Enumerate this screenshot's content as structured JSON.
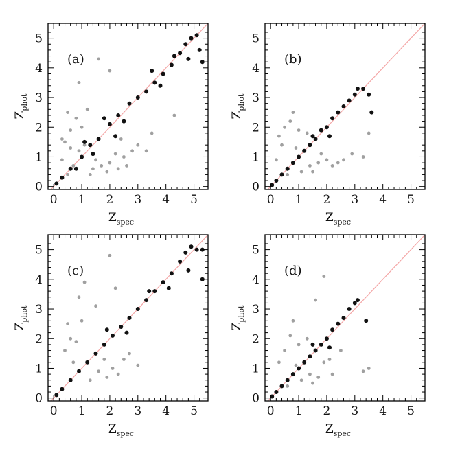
{
  "chart_data": [
    {
      "panel": "(a)",
      "type": "scatter",
      "xlabel": {
        "main": "Z",
        "sub": "spec"
      },
      "ylabel": {
        "main": "Z",
        "sub": "phot"
      },
      "xlim": [
        -0.2,
        5.5
      ],
      "ylim": [
        -0.1,
        5.5
      ],
      "xticks": [
        "0",
        "1",
        "2",
        "3",
        "4",
        "5"
      ],
      "yticks": [
        "0",
        "1",
        "2",
        "3",
        "4",
        "5"
      ],
      "reference_line": "y = x",
      "series": [
        {
          "color": "#a0a0a0",
          "points": [
            [
              0.3,
              0.9
            ],
            [
              0.4,
              1.5
            ],
            [
              0.6,
              1.9
            ],
            [
              0.8,
              2.3
            ],
            [
              0.9,
              1.2
            ],
            [
              1.0,
              2.0
            ],
            [
              0.5,
              2.5
            ],
            [
              1.2,
              2.6
            ],
            [
              0.7,
              0.7
            ],
            [
              1.4,
              0.6
            ],
            [
              1.7,
              0.7
            ],
            [
              2.0,
              0.8
            ],
            [
              2.3,
              0.6
            ],
            [
              2.6,
              0.7
            ],
            [
              2.2,
              1.1
            ],
            [
              1.9,
              0.5
            ],
            [
              1.5,
              0.9
            ],
            [
              2.8,
              1.2
            ],
            [
              0.9,
              3.5
            ],
            [
              2.0,
              3.9
            ],
            [
              1.6,
              4.3
            ],
            [
              3.3,
              1.2
            ],
            [
              0.3,
              1.6
            ],
            [
              0.6,
              1.3
            ],
            [
              1.1,
              1.4
            ],
            [
              2.5,
              1.0
            ],
            [
              3.0,
              1.4
            ],
            [
              2.4,
              1.6
            ],
            [
              3.5,
              1.8
            ],
            [
              4.3,
              2.4
            ],
            [
              0.5,
              0.4
            ],
            [
              1.3,
              0.4
            ]
          ]
        },
        {
          "color": "#111111",
          "points": [
            [
              0.1,
              0.1
            ],
            [
              0.3,
              0.3
            ],
            [
              0.6,
              0.6
            ],
            [
              1.0,
              1.0
            ],
            [
              1.3,
              1.4
            ],
            [
              1.6,
              1.6
            ],
            [
              2.0,
              2.1
            ],
            [
              2.3,
              2.4
            ],
            [
              2.7,
              2.8
            ],
            [
              3.0,
              3.0
            ],
            [
              3.3,
              3.2
            ],
            [
              3.6,
              3.5
            ],
            [
              3.9,
              3.8
            ],
            [
              4.2,
              4.1
            ],
            [
              4.5,
              4.5
            ],
            [
              4.7,
              4.8
            ],
            [
              4.9,
              5.0
            ],
            [
              5.1,
              5.1
            ],
            [
              5.2,
              4.6
            ],
            [
              5.3,
              4.2
            ],
            [
              4.8,
              4.3
            ],
            [
              4.3,
              4.4
            ],
            [
              3.8,
              3.4
            ],
            [
              3.5,
              3.9
            ],
            [
              2.5,
              2.2
            ],
            [
              1.8,
              2.3
            ],
            [
              2.2,
              1.7
            ],
            [
              1.1,
              1.5
            ],
            [
              1.4,
              1.1
            ],
            [
              0.8,
              0.6
            ]
          ]
        }
      ]
    },
    {
      "panel": "(b)",
      "type": "scatter",
      "xlabel": {
        "main": "Z",
        "sub": "spec"
      },
      "ylabel": {
        "main": "Z",
        "sub": "phot"
      },
      "xlim": [
        -0.2,
        5.5
      ],
      "ylim": [
        -0.1,
        5.5
      ],
      "xticks": [
        "0",
        "1",
        "2",
        "3",
        "4",
        "5"
      ],
      "yticks": [
        "0",
        "1",
        "2",
        "3",
        "4",
        "5"
      ],
      "reference_line": "y = x",
      "series": [
        {
          "color": "#a0a0a0",
          "points": [
            [
              0.2,
              0.9
            ],
            [
              0.4,
              1.4
            ],
            [
              0.5,
              2.0
            ],
            [
              0.7,
              2.2
            ],
            [
              0.9,
              1.3
            ],
            [
              0.3,
              1.7
            ],
            [
              1.1,
              0.5
            ],
            [
              1.4,
              0.7
            ],
            [
              1.7,
              0.8
            ],
            [
              2.0,
              0.9
            ],
            [
              2.2,
              0.7
            ],
            [
              1.8,
              1.1
            ],
            [
              2.4,
              0.8
            ],
            [
              1.3,
              1.8
            ],
            [
              0.6,
              0.4
            ],
            [
              0.8,
              2.5
            ],
            [
              2.6,
              0.9
            ],
            [
              2.9,
              1.1
            ],
            [
              3.5,
              1.8
            ],
            [
              3.3,
              1.0
            ],
            [
              1.5,
              0.5
            ],
            [
              1.0,
              1.9
            ]
          ]
        },
        {
          "color": "#111111",
          "points": [
            [
              0.05,
              0.05
            ],
            [
              0.2,
              0.2
            ],
            [
              0.4,
              0.4
            ],
            [
              0.6,
              0.6
            ],
            [
              0.8,
              0.8
            ],
            [
              1.0,
              1.0
            ],
            [
              1.2,
              1.2
            ],
            [
              1.4,
              1.4
            ],
            [
              1.6,
              1.6
            ],
            [
              1.8,
              1.9
            ],
            [
              2.0,
              2.0
            ],
            [
              2.2,
              2.3
            ],
            [
              2.4,
              2.5
            ],
            [
              2.6,
              2.7
            ],
            [
              2.8,
              2.9
            ],
            [
              3.0,
              3.1
            ],
            [
              3.1,
              3.3
            ],
            [
              3.3,
              3.3
            ],
            [
              3.5,
              3.1
            ],
            [
              3.6,
              2.5
            ],
            [
              2.1,
              1.7
            ],
            [
              1.5,
              1.7
            ]
          ]
        }
      ]
    },
    {
      "panel": "(c)",
      "type": "scatter",
      "xlabel": {
        "main": "Z",
        "sub": "spec"
      },
      "ylabel": {
        "main": "Z",
        "sub": "phot"
      },
      "xlim": [
        -0.2,
        5.5
      ],
      "ylim": [
        -0.1,
        5.5
      ],
      "xticks": [
        "0",
        "1",
        "2",
        "3",
        "4",
        "5"
      ],
      "yticks": [
        "0",
        "1",
        "2",
        "3",
        "4",
        "5"
      ],
      "reference_line": "y = x",
      "series": [
        {
          "color": "#a0a0a0",
          "points": [
            [
              0.4,
              1.6
            ],
            [
              0.6,
              2.0
            ],
            [
              0.8,
              1.9
            ],
            [
              1.0,
              2.6
            ],
            [
              0.9,
              3.4
            ],
            [
              1.2,
              1.2
            ],
            [
              1.6,
              0.9
            ],
            [
              1.9,
              0.7
            ],
            [
              2.1,
              1.0
            ],
            [
              1.5,
              1.5
            ],
            [
              2.3,
              0.8
            ],
            [
              1.1,
              3.9
            ],
            [
              2.2,
              3.7
            ],
            [
              1.5,
              3.1
            ],
            [
              2.0,
              4.8
            ],
            [
              3.0,
              1.1
            ],
            [
              2.7,
              1.5
            ],
            [
              0.7,
              1.2
            ],
            [
              1.3,
              0.6
            ],
            [
              2.5,
              1.3
            ],
            [
              1.8,
              1.3
            ],
            [
              0.5,
              2.5
            ]
          ]
        },
        {
          "color": "#111111",
          "points": [
            [
              0.1,
              0.1
            ],
            [
              0.3,
              0.3
            ],
            [
              0.6,
              0.6
            ],
            [
              0.9,
              0.9
            ],
            [
              1.2,
              1.2
            ],
            [
              1.5,
              1.5
            ],
            [
              1.8,
              1.8
            ],
            [
              2.1,
              2.1
            ],
            [
              2.4,
              2.4
            ],
            [
              2.7,
              2.7
            ],
            [
              3.0,
              3.0
            ],
            [
              3.3,
              3.3
            ],
            [
              3.6,
              3.6
            ],
            [
              3.9,
              3.9
            ],
            [
              4.2,
              4.2
            ],
            [
              4.5,
              4.6
            ],
            [
              4.7,
              4.9
            ],
            [
              4.9,
              5.1
            ],
            [
              5.1,
              5.0
            ],
            [
              5.3,
              5.0
            ],
            [
              5.3,
              4.0
            ],
            [
              4.8,
              4.3
            ],
            [
              4.1,
              3.7
            ],
            [
              3.4,
              3.6
            ],
            [
              2.6,
              2.2
            ],
            [
              1.9,
              2.3
            ]
          ]
        }
      ]
    },
    {
      "panel": "(d)",
      "type": "scatter",
      "xlabel": {
        "main": "Z",
        "sub": "spec"
      },
      "ylabel": {
        "main": "Z",
        "sub": "phot"
      },
      "xlim": [
        -0.2,
        5.5
      ],
      "ylim": [
        -0.1,
        5.5
      ],
      "xticks": [
        "0",
        "1",
        "2",
        "3",
        "4",
        "5"
      ],
      "yticks": [
        "0",
        "1",
        "2",
        "3",
        "4",
        "5"
      ],
      "reference_line": "y = x",
      "series": [
        {
          "color": "#a0a0a0",
          "points": [
            [
              0.3,
              1.2
            ],
            [
              0.5,
              1.6
            ],
            [
              0.7,
              2.1
            ],
            [
              0.9,
              1.1
            ],
            [
              1.1,
              0.6
            ],
            [
              1.4,
              0.8
            ],
            [
              1.7,
              0.7
            ],
            [
              1.9,
              1.2
            ],
            [
              2.2,
              0.8
            ],
            [
              1.3,
              2.0
            ],
            [
              0.8,
              2.6
            ],
            [
              1.6,
              3.3
            ],
            [
              1.9,
              4.1
            ],
            [
              2.5,
              1.6
            ],
            [
              3.5,
              1.0
            ],
            [
              3.3,
              0.9
            ],
            [
              0.6,
              0.4
            ],
            [
              1.5,
              0.5
            ],
            [
              2.1,
              1.3
            ],
            [
              1.0,
              1.8
            ]
          ]
        },
        {
          "color": "#111111",
          "points": [
            [
              0.05,
              0.05
            ],
            [
              0.2,
              0.2
            ],
            [
              0.4,
              0.4
            ],
            [
              0.6,
              0.6
            ],
            [
              0.8,
              0.8
            ],
            [
              1.0,
              1.0
            ],
            [
              1.2,
              1.2
            ],
            [
              1.4,
              1.4
            ],
            [
              1.6,
              1.6
            ],
            [
              1.8,
              1.8
            ],
            [
              2.0,
              2.0
            ],
            [
              2.2,
              2.3
            ],
            [
              2.4,
              2.5
            ],
            [
              2.6,
              2.7
            ],
            [
              2.8,
              3.0
            ],
            [
              3.0,
              3.2
            ],
            [
              3.1,
              3.3
            ],
            [
              3.4,
              2.6
            ],
            [
              2.1,
              1.7
            ],
            [
              1.5,
              1.8
            ]
          ]
        }
      ]
    }
  ]
}
